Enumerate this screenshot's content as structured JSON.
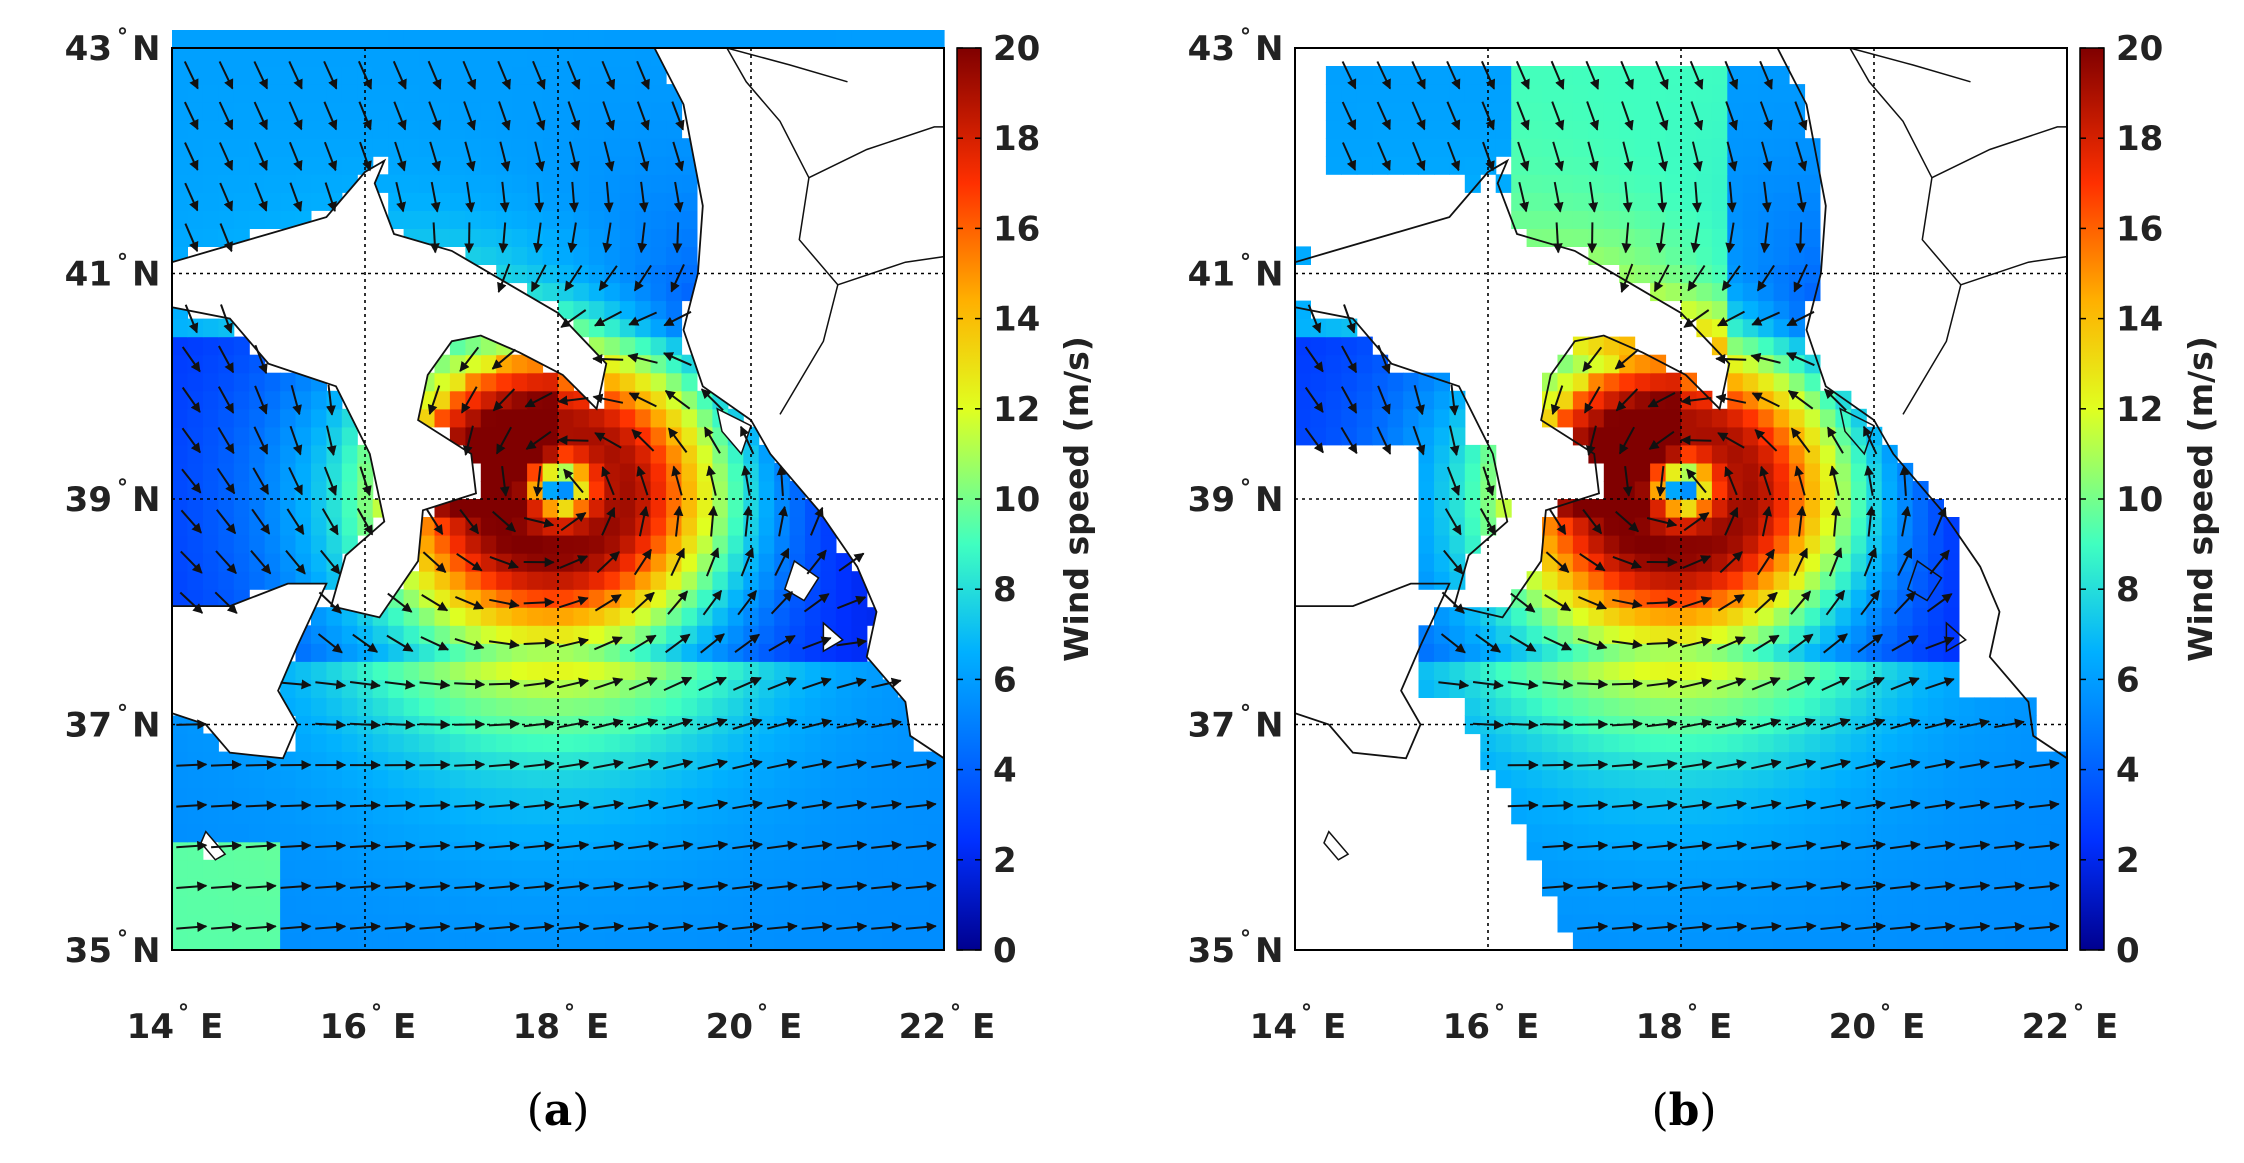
{
  "figure": {
    "panels": [
      {
        "caption_letter": "a",
        "lat_ticks": [
          "43",
          "41",
          "39",
          "37",
          "35"
        ],
        "lat_suffix": "N",
        "lon_ticks": [
          "14",
          "16",
          "18",
          "20",
          "22"
        ],
        "lon_suffix": "E",
        "colorbar": {
          "label": "Wind speed (m/s)",
          "ticks": [
            "20",
            "18",
            "16",
            "14",
            "12",
            "10",
            "8",
            "6",
            "4",
            "2",
            "0"
          ],
          "range": [
            0,
            20
          ],
          "colors": [
            "#00008f",
            "#0050ff",
            "#00c0ff",
            "#60ffa0",
            "#e0ff20",
            "#ffb000",
            "#ff3000",
            "#800000"
          ]
        }
      },
      {
        "caption_letter": "b",
        "lat_ticks": [
          "43",
          "41",
          "39",
          "37",
          "35"
        ],
        "lat_suffix": "N",
        "lon_ticks": [
          "14",
          "16",
          "18",
          "20",
          "22"
        ],
        "lon_suffix": "E",
        "colorbar": {
          "label": "Wind speed (m/s)",
          "ticks": [
            "20",
            "18",
            "16",
            "14",
            "12",
            "10",
            "8",
            "6",
            "4",
            "2",
            "0"
          ],
          "range": [
            0,
            20
          ],
          "colors": [
            "#00008f",
            "#0050ff",
            "#00c0ff",
            "#60ffa0",
            "#e0ff20",
            "#ffb000",
            "#ff3000",
            "#800000"
          ]
        }
      }
    ],
    "degree_symbol": "°"
  },
  "map_data": {
    "lon_range": [
      14,
      22
    ],
    "lat_range": [
      35,
      43
    ],
    "cyclone_center": {
      "lon": 18.0,
      "lat": 39.1
    },
    "cyclone_max_speed": 20
  }
}
